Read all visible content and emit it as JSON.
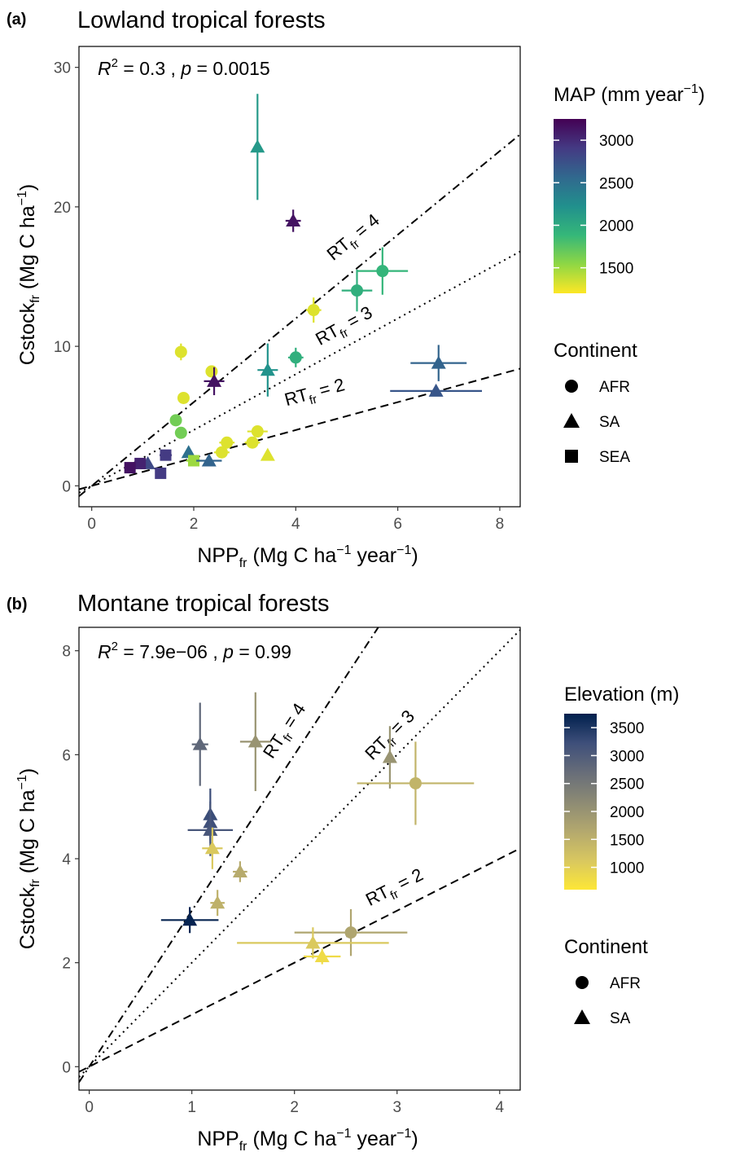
{
  "chart_data": [
    {
      "type": "scatter",
      "panel_tag": "(a)",
      "title": "Lowland tropical forests",
      "stat_R2": "0.3",
      "stat_p": "0.0015",
      "x_axis": {
        "base": "NPP",
        "sub": "fr",
        "units": "(Mg C ha",
        "u_exp1": "−1",
        "u_mid": " year",
        "u_exp2": "−1",
        "u_close": ")"
      },
      "y_axis": {
        "base": "Cstock",
        "sub": "fr",
        "units": "(Mg C ha",
        "u_exp1": "−1",
        "u_close": ")"
      },
      "xlim": [
        -0.25,
        8.4
      ],
      "ylim": [
        -1.5,
        31.5
      ],
      "xticks": [
        0,
        2,
        4,
        6,
        8
      ],
      "yticks": [
        0,
        10,
        20,
        30
      ],
      "reference_lines": [
        {
          "label_main": "RT",
          "label_sub": "fr",
          "label_rhs": " = 4",
          "slope": 3.0,
          "intercept": 0,
          "dash": "dotdash",
          "label_x": 5.2,
          "label_y": 17.5
        },
        {
          "label_main": "RT",
          "label_sub": "fr",
          "label_rhs": " = 3",
          "slope": 2.0,
          "intercept": 0,
          "dash": "dotted",
          "label_x": 5.0,
          "label_y": 11.1
        },
        {
          "label_main": "RT",
          "label_sub": "fr",
          "label_rhs": " = 2",
          "slope": 1.0,
          "intercept": 0,
          "dash": "dashed",
          "label_x": 4.4,
          "label_y": 6.3
        }
      ],
      "color_legend": {
        "title": "MAP",
        "title_units_open": "(mm year",
        "title_units_exp": "−1",
        "title_units_close": ")",
        "vmin": 1200,
        "vmax": 3250,
        "ticks": [
          3000,
          2500,
          2000,
          1500
        ],
        "palette": [
          "#fde725",
          "#8fd744",
          "#35b779",
          "#21908d",
          "#31688e",
          "#443a83",
          "#440154"
        ]
      },
      "shape_legend": {
        "title": "Continent",
        "items": [
          "AFR",
          "SA",
          "SEA"
        ],
        "shapes": [
          "circle",
          "triangle",
          "square"
        ]
      },
      "points": [
        {
          "x": 3.25,
          "y": 24.3,
          "shape": "triangle",
          "c": 2150,
          "xerr": 0.0,
          "yerr": 3.8
        },
        {
          "x": 3.95,
          "y": 19.0,
          "shape": "triangle",
          "c": 3150,
          "xerr": 0.15,
          "yerr": 0.8
        },
        {
          "x": 5.7,
          "y": 15.4,
          "shape": "circle",
          "c": 1900,
          "xerr": 0.5,
          "yerr": 1.7
        },
        {
          "x": 5.2,
          "y": 14.0,
          "shape": "circle",
          "c": 1950,
          "xerr": 0.3,
          "yerr": 1.5
        },
        {
          "x": 4.35,
          "y": 12.6,
          "shape": "circle",
          "c": 1300,
          "xerr": 0.15,
          "yerr": 0.9
        },
        {
          "x": 1.75,
          "y": 9.6,
          "shape": "circle",
          "c": 1300,
          "xerr": 0.0,
          "yerr": 0.6
        },
        {
          "x": 4.0,
          "y": 9.2,
          "shape": "circle",
          "c": 1950,
          "xerr": 0.15,
          "yerr": 0.7
        },
        {
          "x": 3.45,
          "y": 8.3,
          "shape": "triangle",
          "c": 2200,
          "xerr": 0.2,
          "yerr": 1.9
        },
        {
          "x": 6.8,
          "y": 8.8,
          "shape": "triangle",
          "c": 2600,
          "xerr": 0.55,
          "yerr": 1.3
        },
        {
          "x": 2.35,
          "y": 8.2,
          "shape": "circle",
          "c": 1300,
          "xerr": 0.0,
          "yerr": 0.4
        },
        {
          "x": 2.4,
          "y": 7.5,
          "shape": "triangle",
          "c": 3150,
          "xerr": 0.2,
          "yerr": 1.0
        },
        {
          "x": 6.75,
          "y": 6.8,
          "shape": "triangle",
          "c": 2700,
          "xerr": 0.9,
          "yerr": 0.0
        },
        {
          "x": 1.8,
          "y": 6.3,
          "shape": "circle",
          "c": 1300,
          "xerr": 0.1,
          "yerr": 0.0
        },
        {
          "x": 1.65,
          "y": 4.7,
          "shape": "circle",
          "c": 1650,
          "xerr": 0.0,
          "yerr": 0.0
        },
        {
          "x": 1.75,
          "y": 3.8,
          "shape": "circle",
          "c": 1650,
          "xerr": 0.0,
          "yerr": 0.2
        },
        {
          "x": 3.25,
          "y": 3.9,
          "shape": "circle",
          "c": 1300,
          "xerr": 0.2,
          "yerr": 0.0
        },
        {
          "x": 3.15,
          "y": 3.1,
          "shape": "circle",
          "c": 1300,
          "xerr": 0.15,
          "yerr": 0.0
        },
        {
          "x": 2.65,
          "y": 3.1,
          "shape": "circle",
          "c": 1300,
          "xerr": 0.15,
          "yerr": 0.4
        },
        {
          "x": 3.45,
          "y": 2.2,
          "shape": "triangle",
          "c": 1300,
          "xerr": 0.0,
          "yerr": 0.0
        },
        {
          "x": 1.9,
          "y": 2.4,
          "shape": "triangle",
          "c": 2500,
          "xerr": 0.0,
          "yerr": 0.0
        },
        {
          "x": 2.55,
          "y": 2.4,
          "shape": "circle",
          "c": 1300,
          "xerr": 0.15,
          "yerr": 0.0
        },
        {
          "x": 2.0,
          "y": 1.8,
          "shape": "square",
          "c": 1500,
          "xerr": 0.15,
          "yerr": 0.0
        },
        {
          "x": 2.3,
          "y": 1.8,
          "shape": "triangle",
          "c": 2600,
          "xerr": 0.25,
          "yerr": 0.0
        },
        {
          "x": 1.45,
          "y": 2.2,
          "shape": "square",
          "c": 2900,
          "xerr": 0.12,
          "yerr": 0.3
        },
        {
          "x": 1.1,
          "y": 1.6,
          "shape": "triangle",
          "c": 2800,
          "xerr": 0.0,
          "yerr": 0.0
        },
        {
          "x": 0.95,
          "y": 1.6,
          "shape": "square",
          "c": 3050,
          "xerr": 0.1,
          "yerr": 0.0
        },
        {
          "x": 0.75,
          "y": 1.3,
          "shape": "square",
          "c": 3150,
          "xerr": 0.0,
          "yerr": 0.0
        },
        {
          "x": 1.35,
          "y": 0.9,
          "shape": "square",
          "c": 2900,
          "xerr": 0.0,
          "yerr": 0.3
        }
      ]
    },
    {
      "type": "scatter",
      "panel_tag": "(b)",
      "title": "Montane tropical forests",
      "stat_R2": "7.9e−06",
      "stat_p": "0.99",
      "x_axis": {
        "base": "NPP",
        "sub": "fr",
        "units": "(Mg C ha",
        "u_exp1": "−1",
        "u_mid": " year",
        "u_exp2": "−1",
        "u_close": ")"
      },
      "y_axis": {
        "base": "Cstock",
        "sub": "fr",
        "units": "(Mg C ha",
        "u_exp1": "−1",
        "u_close": ")"
      },
      "xlim": [
        -0.1,
        4.2
      ],
      "ylim": [
        -0.45,
        8.45
      ],
      "xticks": [
        0,
        1,
        2,
        3,
        4
      ],
      "yticks": [
        0,
        2,
        4,
        6,
        8
      ],
      "reference_lines": [
        {
          "label_main": "RT",
          "label_sub": "fr",
          "label_rhs": " = 4",
          "slope": 3.0,
          "intercept": 0,
          "dash": "dotdash",
          "label_x": 1.95,
          "label_y": 6.4
        },
        {
          "label_main": "RT",
          "label_sub": "fr",
          "label_rhs": " = 3",
          "slope": 2.0,
          "intercept": 0,
          "dash": "dotted",
          "label_x": 2.97,
          "label_y": 6.3
        },
        {
          "label_main": "RT",
          "label_sub": "fr",
          "label_rhs": " = 2",
          "slope": 1.0,
          "intercept": 0,
          "dash": "dashed",
          "label_x": 3.0,
          "label_y": 3.35
        }
      ],
      "color_legend": {
        "title": "Elevation (m)",
        "title_units_open": "",
        "title_units_exp": "",
        "title_units_close": "",
        "vmin": 600,
        "vmax": 3750,
        "ticks": [
          3500,
          3000,
          2500,
          2000,
          1500,
          1000
        ],
        "palette": [
          "#fde737",
          "#d8c760",
          "#b3a86e",
          "#8c8a74",
          "#676d79",
          "#3e4f7a",
          "#00204d"
        ]
      },
      "shape_legend": {
        "title": "Continent",
        "items": [
          "AFR",
          "SA"
        ],
        "shapes": [
          "circle",
          "triangle"
        ]
      },
      "points": [
        {
          "x": 1.08,
          "y": 6.2,
          "shape": "triangle",
          "c": 2800,
          "xerr": 0.08,
          "yerr": 0.8
        },
        {
          "x": 1.62,
          "y": 6.25,
          "shape": "triangle",
          "c": 2000,
          "xerr": 0.15,
          "yerr": 0.95
        },
        {
          "x": 2.93,
          "y": 5.95,
          "shape": "triangle",
          "c": 2000,
          "xerr": 0.0,
          "yerr": 0.6
        },
        {
          "x": 3.18,
          "y": 5.45,
          "shape": "circle",
          "c": 1450,
          "xerr": 0.57,
          "yerr": 0.8
        },
        {
          "x": 1.18,
          "y": 4.85,
          "shape": "triangle",
          "c": 3250,
          "xerr": 0.0,
          "yerr": 0.5
        },
        {
          "x": 1.18,
          "y": 4.7,
          "shape": "triangle",
          "c": 3200,
          "xerr": 0.0,
          "yerr": 0.4
        },
        {
          "x": 1.18,
          "y": 4.55,
          "shape": "triangle",
          "c": 3100,
          "xerr": 0.22,
          "yerr": 0.5
        },
        {
          "x": 1.2,
          "y": 4.2,
          "shape": "triangle",
          "c": 1100,
          "xerr": 0.1,
          "yerr": 0.4
        },
        {
          "x": 1.47,
          "y": 3.75,
          "shape": "triangle",
          "c": 1600,
          "xerr": 0.07,
          "yerr": 0.2
        },
        {
          "x": 1.25,
          "y": 3.15,
          "shape": "triangle",
          "c": 1500,
          "xerr": 0.07,
          "yerr": 0.25
        },
        {
          "x": 0.98,
          "y": 2.82,
          "shape": "triangle",
          "c": 3700,
          "xerr": 0.28,
          "yerr": 0.25
        },
        {
          "x": 2.55,
          "y": 2.58,
          "shape": "circle",
          "c": 1700,
          "xerr": 0.55,
          "yerr": 0.45
        },
        {
          "x": 2.18,
          "y": 2.38,
          "shape": "triangle",
          "c": 1100,
          "xerr": 0.74,
          "yerr": 0.3
        },
        {
          "x": 2.27,
          "y": 2.12,
          "shape": "triangle",
          "c": 800,
          "xerr": 0.18,
          "yerr": 0.15
        }
      ]
    }
  ]
}
